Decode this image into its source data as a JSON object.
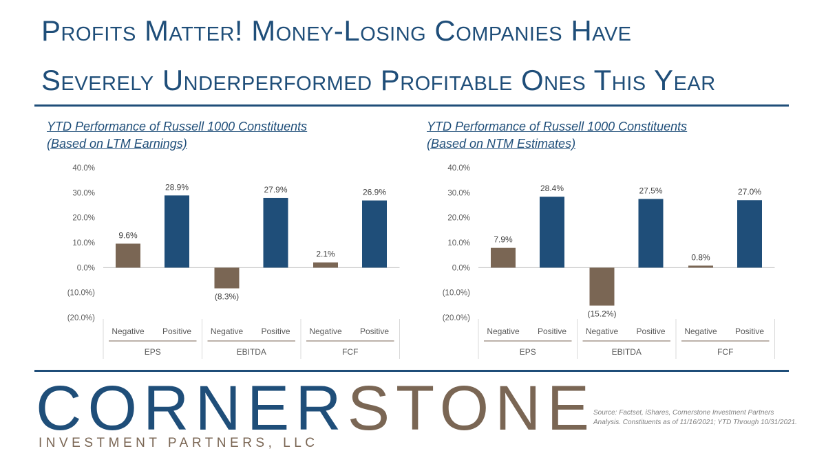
{
  "header": {
    "title_line_1": "Profits Matter! Money-Losing Companies Have",
    "title_line_2": "Severely Underperformed Profitable Ones This Year"
  },
  "chart_data": [
    {
      "type": "bar",
      "title": "YTD Performance of Russell 1000 Constituents",
      "subtitle": "(Based on LTM Earnings)",
      "groups": [
        "EPS",
        "EBITDA",
        "FCF"
      ],
      "categories": [
        "Negative",
        "Positive"
      ],
      "values": [
        [
          9.6,
          28.9
        ],
        [
          -8.3,
          27.9
        ],
        [
          2.1,
          26.9
        ]
      ],
      "value_labels": [
        [
          "9.6%",
          "28.9%"
        ],
        [
          "(8.3%)",
          "27.9%"
        ],
        [
          "2.1%",
          "26.9%"
        ]
      ],
      "ylim": [
        -20,
        40
      ],
      "yticks": [
        "40.0%",
        "30.0%",
        "20.0%",
        "10.0%",
        "0.0%",
        "(10.0%)",
        "(20.0%)"
      ],
      "grid": false
    },
    {
      "type": "bar",
      "title": "YTD Performance of Russell 1000 Constituents",
      "subtitle": "(Based on NTM Estimates)",
      "groups": [
        "EPS",
        "EBITDA",
        "FCF"
      ],
      "categories": [
        "Negative",
        "Positive"
      ],
      "values": [
        [
          7.9,
          28.4
        ],
        [
          -15.2,
          27.5
        ],
        [
          0.8,
          27.0
        ]
      ],
      "value_labels": [
        [
          "7.9%",
          "28.4%"
        ],
        [
          "(15.2%)",
          "27.5%"
        ],
        [
          "0.8%",
          "27.0%"
        ]
      ],
      "ylim": [
        -20,
        40
      ],
      "yticks": [
        "40.0%",
        "30.0%",
        "20.0%",
        "10.0%",
        "0.0%",
        "(10.0%)",
        "(20.0%)"
      ],
      "grid": false
    }
  ],
  "colors": {
    "negative": "#7a6654",
    "positive": "#1f4e79",
    "title": "#1f4e79"
  },
  "logo": {
    "part_a": "CORNER",
    "part_b": "STONE",
    "subtitle": "INVESTMENT PARTNERS, LLC"
  },
  "footer": {
    "source": "Source: Factset, iShares, Cornerstone Investment Partners Analysis. Constituents as of 11/16/2021; YTD Through 10/31/2021."
  }
}
